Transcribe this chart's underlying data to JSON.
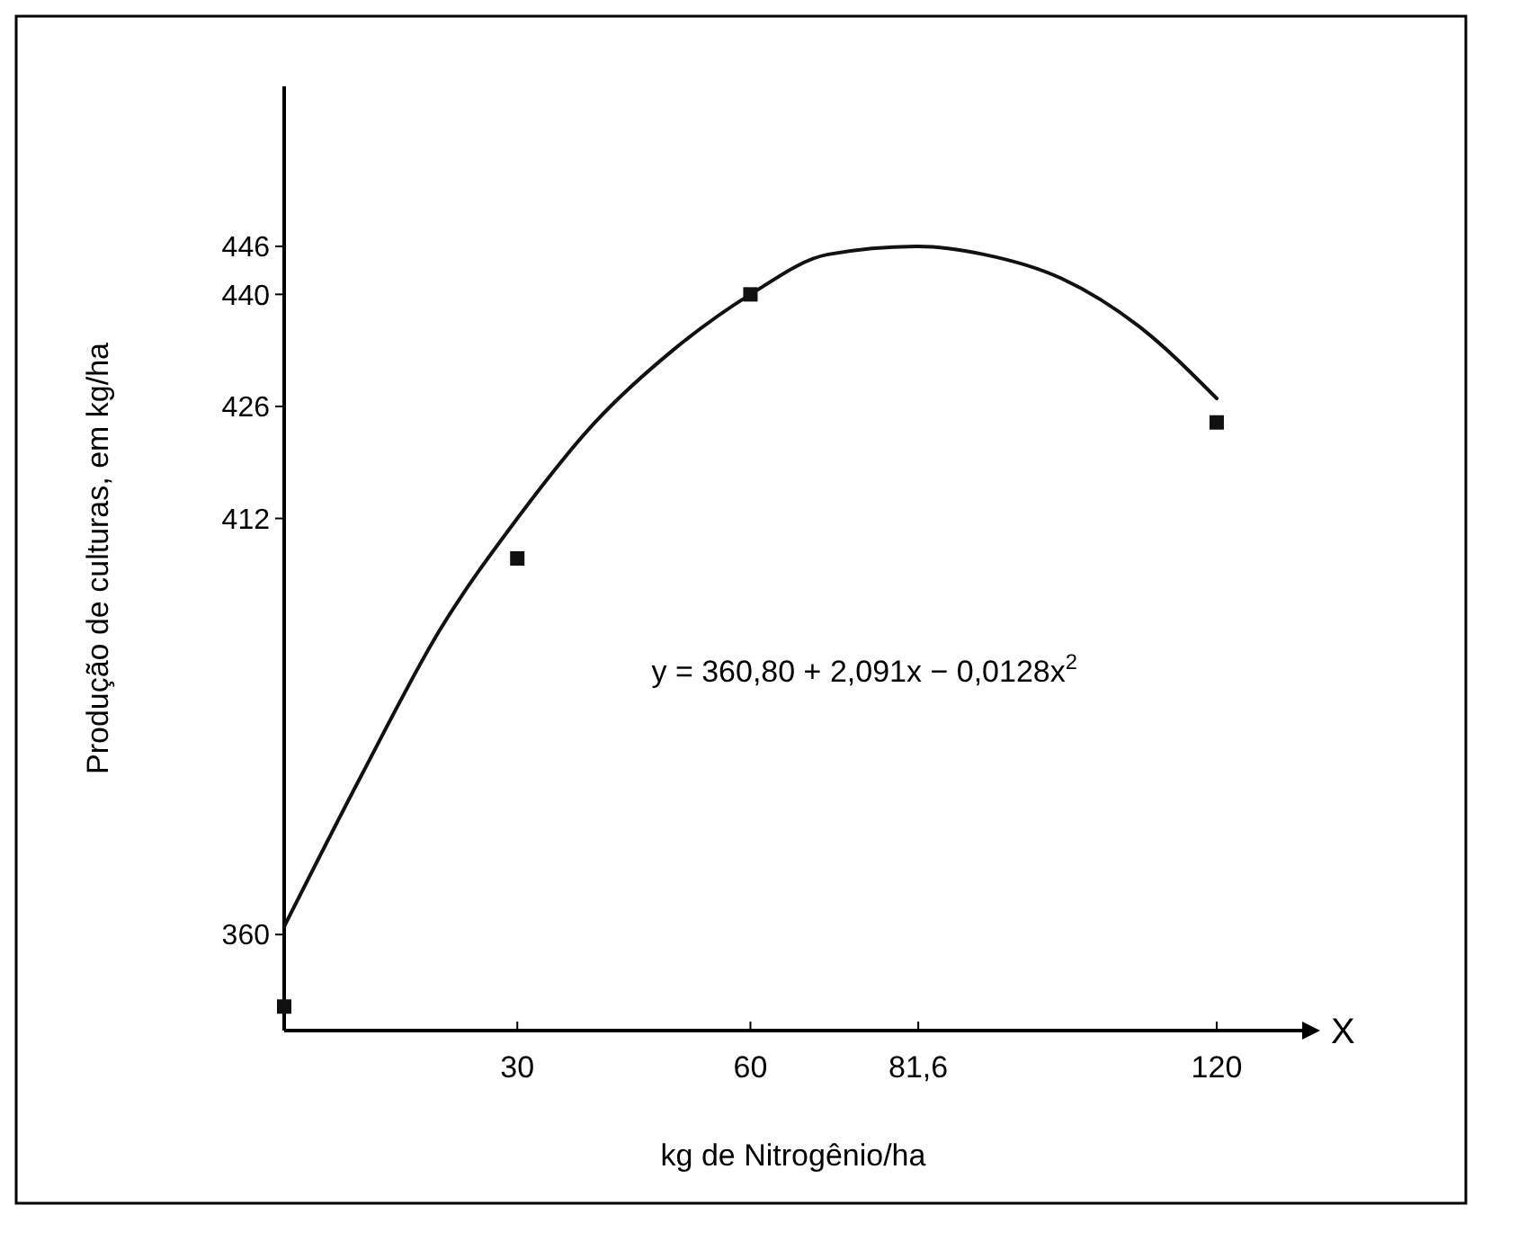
{
  "chart_data": {
    "type": "scatter",
    "xlabel": "kg de Nitrogênio/ha",
    "ylabel": "Produção de culturas, em kg/ha",
    "xlim": [
      0,
      131
    ],
    "ylim": [
      348,
      466
    ],
    "xticks": [
      30,
      60,
      {
        "value": 81.6,
        "label": "81,6"
      },
      120
    ],
    "yticks": [
      360,
      412,
      426,
      440,
      446
    ],
    "grid": false,
    "marker": "square",
    "series": [
      {
        "color": "#111111",
        "x": [
          0,
          30,
          60,
          120
        ],
        "values": [
          351,
          407,
          440,
          424
        ]
      },
      {
        "type": "line",
        "color": "#111111",
        "marker": "none",
        "line_style": "solid",
        "x": [
          0,
          10,
          20,
          30,
          40,
          50,
          60,
          70,
          81.6,
          90,
          100,
          110,
          120
        ],
        "values": [
          361,
          380,
          398,
          412,
          424,
          433,
          440,
          445,
          446,
          445,
          442,
          436,
          427
        ]
      }
    ],
    "annotations": [
      "y = 360,80 + 2,091x − 0,0128x$^{2}$",
      "X"
    ]
  }
}
